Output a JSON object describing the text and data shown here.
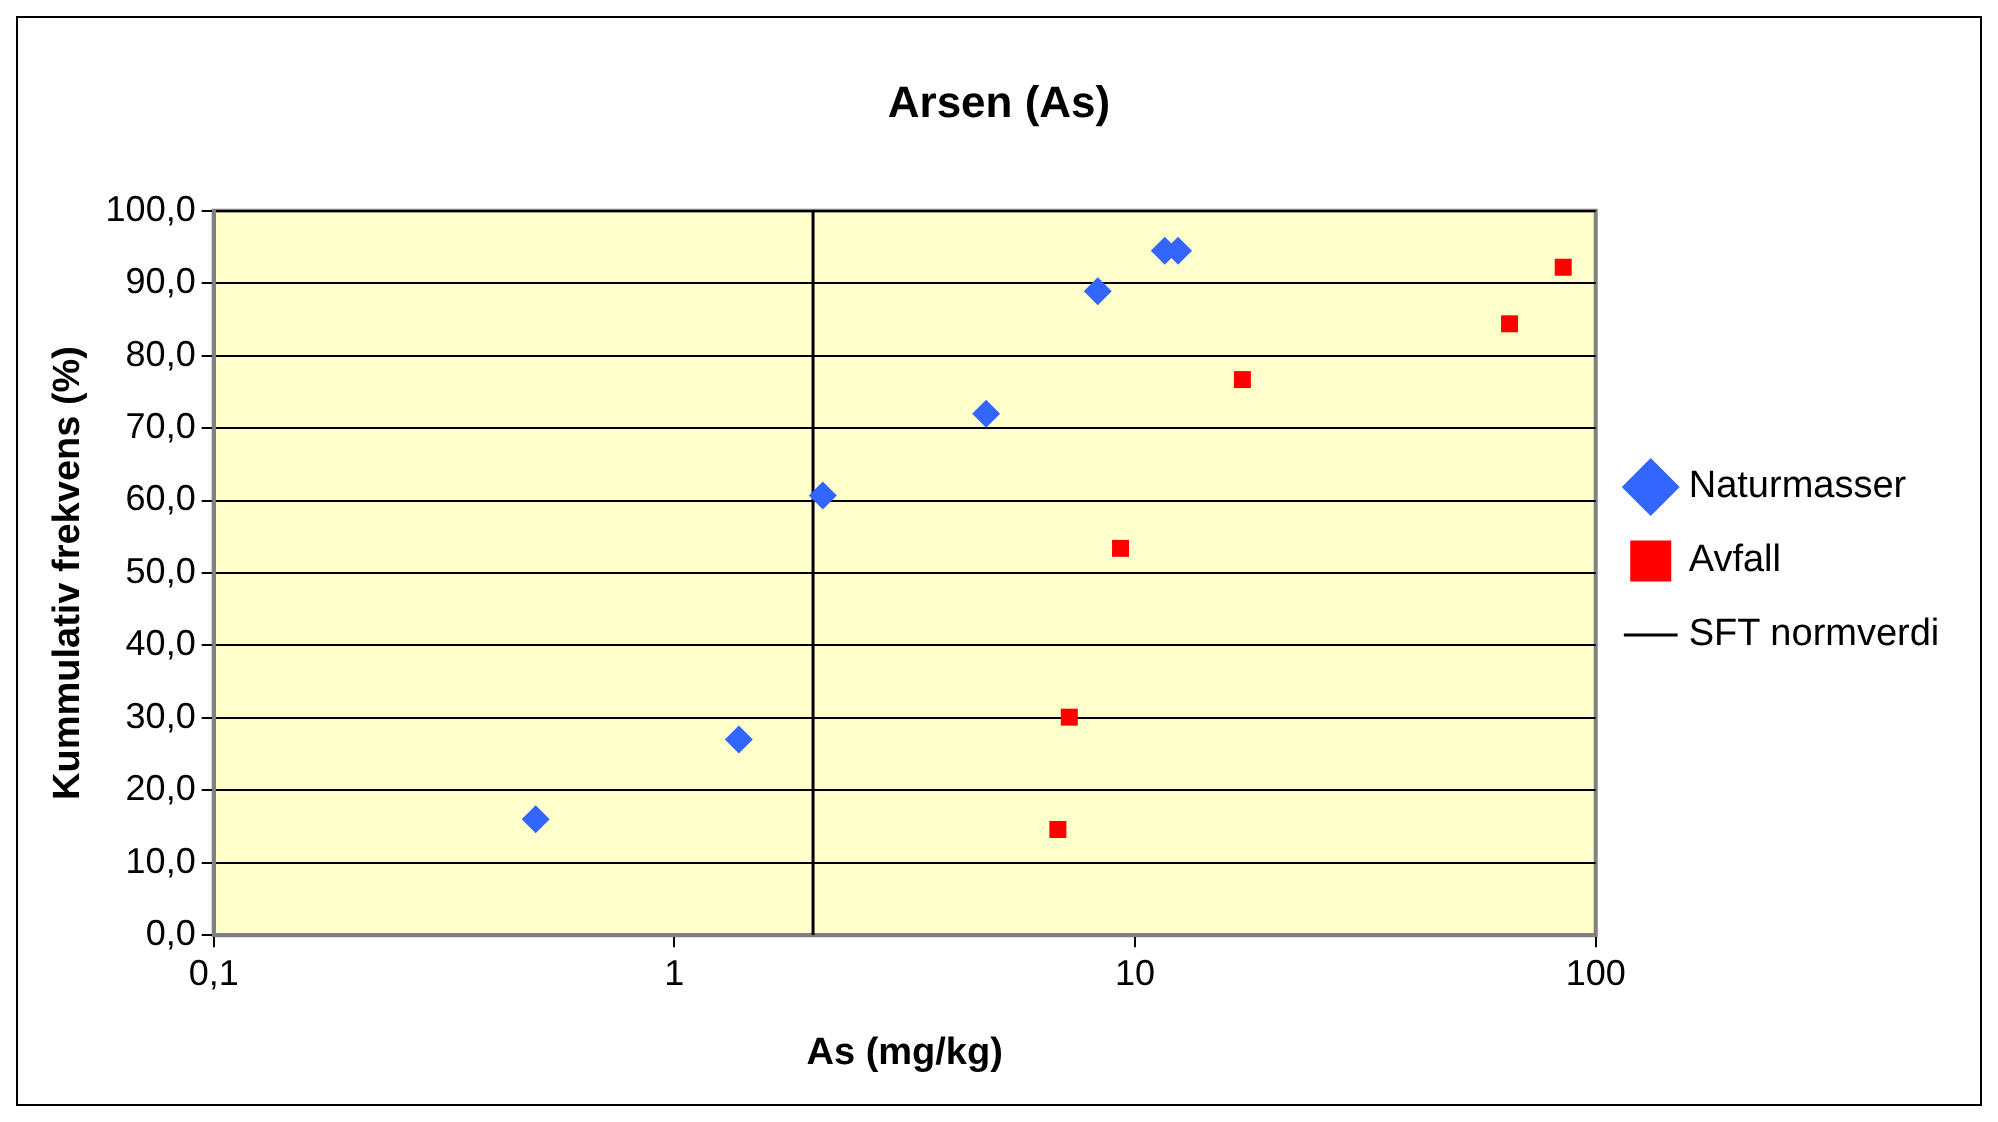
{
  "chart_data": {
    "type": "scatter",
    "title": "Arsen (As)",
    "xlabel": "As (mg/kg)",
    "ylabel": "Kummulativ frekvens (%)",
    "log": "x",
    "grid": "y",
    "legend": "right",
    "xlim": [
      0.1,
      100
    ],
    "xticks": [
      {
        "value": 0.1,
        "label": "0,1"
      },
      1,
      10,
      100
    ],
    "ylim": [
      0,
      100
    ],
    "yticks": [
      {
        "value": 0,
        "label": "0,0"
      },
      {
        "value": 10,
        "label": "10,0"
      },
      {
        "value": 20,
        "label": "20,0"
      },
      {
        "value": 30,
        "label": "30,0"
      },
      {
        "value": 40,
        "label": "40,0"
      },
      {
        "value": 50,
        "label": "50,0"
      },
      {
        "value": 60,
        "label": "60,0"
      },
      {
        "value": 70,
        "label": "70,0"
      },
      {
        "value": 80,
        "label": "80,0"
      },
      {
        "value": 90,
        "label": "90,0"
      },
      {
        "value": 100,
        "label": "100,0"
      }
    ],
    "series": [
      {
        "name": "Naturmasser",
        "color": "#3366ff",
        "marker": "diamond",
        "x": [
          0.5,
          1.38,
          2.1,
          4.75,
          8.3,
          11.6,
          12.4
        ],
        "values": [
          16.0,
          27.0,
          60.7,
          72.0,
          88.9,
          94.5,
          94.5
        ]
      },
      {
        "name": "Avfall",
        "color": "#ff0000",
        "marker": "square",
        "x": [
          6.8,
          7.2,
          9.3,
          17.1,
          65,
          85
        ],
        "values": [
          14.6,
          30.1,
          53.4,
          76.7,
          84.4,
          92.2
        ]
      },
      {
        "name": "SFT normverdi",
        "type": "line",
        "color": "#000000",
        "marker": "none",
        "x": [
          2,
          2
        ],
        "values": [
          0,
          100
        ]
      }
    ]
  }
}
